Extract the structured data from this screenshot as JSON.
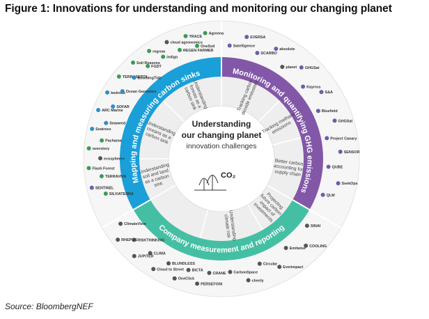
{
  "figure_title": "Figure 1: Innovations for understanding and monitoring our changing planet",
  "source": "Source: BloombergNEF",
  "center": {
    "line1": "Understanding",
    "line2": "our changing planet",
    "line3": "innovation challenges",
    "co2_label": "CO₂"
  },
  "colors": {
    "carbon_sinks": "#1a9fd8",
    "ghg_emissions": "#8257a8",
    "company_reporting": "#45bfa3",
    "inner_ring": "#eeeeee",
    "outer_ring": "#f6f6f6"
  },
  "categories": {
    "carbon_sinks": "Mapping and measuring carbon sinks",
    "ghg_emissions": "Monitoring and quantifying GHG emissions",
    "company_reporting": "Company measurement and reporting"
  },
  "challenges": [
    {
      "lines": [
        "Understanding",
        "forests as a",
        "carbon sink"
      ]
    },
    {
      "lines": [
        "Understanding",
        "oceans as a",
        "carbon sink"
      ]
    },
    {
      "lines": [
        "Understanding",
        "soil and land",
        "as a carbon",
        "sink"
      ]
    },
    {
      "lines": [
        "Tracking carbon",
        "dioxide emissions"
      ]
    },
    {
      "lines": [
        "Tracking methane",
        "emissions"
      ]
    },
    {
      "lines": [
        "Better carbon",
        "accounting for",
        "supply chain"
      ]
    },
    {
      "lines": [
        "Understanding",
        "climate risk"
      ]
    },
    {
      "lines": [
        "Projecting",
        "future carbon",
        "impact of",
        "investments"
      ]
    }
  ],
  "logos": [
    {
      "text": "SILVIATERRA",
      "icon": "leaf-icon"
    },
    {
      "text": "SENTINEL",
      "icon": "satellite-icon"
    },
    {
      "text": "TERRAVIVA",
      "icon": "leaf-icon"
    },
    {
      "text": "Flash Forest",
      "icon": "tree-icon"
    },
    {
      "text": "ecosphere+",
      "icon": "globe-icon"
    },
    {
      "text": "overstory",
      "icon": "tree-icon"
    },
    {
      "text": "Pachama",
      "icon": "leaf-icon"
    },
    {
      "text": "Seatrees",
      "icon": "wave-icon"
    },
    {
      "text": "Seaweed",
      "icon": "wave-icon"
    },
    {
      "text": "ARC Marine",
      "icon": "wave-icon"
    },
    {
      "text": "SOFAR",
      "icon": "wave-icon"
    },
    {
      "text": "bedrock",
      "icon": "wave-icon"
    },
    {
      "text": "Ocean Genomics",
      "icon": "wave-icon"
    },
    {
      "text": "TERRASEPTA",
      "icon": "leaf-icon"
    },
    {
      "text": "BoomingTide",
      "icon": "wave-icon"
    },
    {
      "text": "Soil Reasons",
      "icon": "soil-icon"
    },
    {
      "text": "FGDT",
      "icon": "soil-icon"
    },
    {
      "text": "regrow",
      "icon": "soil-icon"
    },
    {
      "text": "indigo",
      "icon": "soil-icon"
    },
    {
      "text": "cloud agronomics",
      "icon": "cloud-icon"
    },
    {
      "text": "REGEN FARMER",
      "icon": "soil-icon"
    },
    {
      "text": "TRACE",
      "icon": "soil-icon"
    },
    {
      "text": "OneSoil",
      "icon": "soil-icon"
    },
    {
      "text": "Agreena",
      "icon": "soil-icon"
    },
    {
      "text": "CRANE",
      "icon": "chart-icon"
    },
    {
      "text": "PERSEFONI",
      "icon": "chart-icon"
    },
    {
      "text": "BlCTA",
      "icon": "chart-icon"
    },
    {
      "text": "OneClick",
      "icon": "chart-icon"
    },
    {
      "text": "BLUNDLESS",
      "icon": "chart-icon"
    },
    {
      "text": "Cloud to Street",
      "icon": "cloud-icon"
    },
    {
      "text": "CLIMA",
      "icon": "chart-icon"
    },
    {
      "text": "JUPITER",
      "icon": "globe-icon"
    },
    {
      "text": "RISKTHINKING",
      "icon": "chart-icon"
    },
    {
      "text": "RHEPOS",
      "icon": "chart-icon"
    },
    {
      "text": "ClimateView",
      "icon": "chart-icon"
    },
    {
      "text": "Satelligence",
      "icon": "satellite-icon"
    },
    {
      "text": "EVERSA",
      "icon": "satellite-icon"
    },
    {
      "text": "SCARBO",
      "icon": "satellite-icon"
    },
    {
      "text": "absolute",
      "icon": "satellite-icon"
    },
    {
      "text": "planet",
      "icon": "globe-icon"
    },
    {
      "text": "GHGSat",
      "icon": "satellite-icon"
    },
    {
      "text": "Kayrros",
      "icon": "satellite-icon"
    },
    {
      "text": "S&A",
      "icon": "satellite-icon"
    },
    {
      "text": "Bluefield",
      "icon": "satellite-icon"
    },
    {
      "text": "GHGSat",
      "icon": "satellite-icon"
    },
    {
      "text": "Project Canary",
      "icon": "satellite-icon"
    },
    {
      "text": "SENSOR",
      "icon": "satellite-icon"
    },
    {
      "text": "QUBE",
      "icon": "satellite-icon"
    },
    {
      "text": "SeekOps",
      "icon": "satellite-icon"
    },
    {
      "text": "QLM",
      "icon": "satellite-icon"
    },
    {
      "text": "SINAI",
      "icon": "chart-icon"
    },
    {
      "text": "COOLING",
      "icon": "chart-icon"
    },
    {
      "text": "Emitwise",
      "icon": "chart-icon"
    },
    {
      "text": "Everimpact",
      "icon": "chart-icon"
    },
    {
      "text": "Circular",
      "icon": "chart-icon"
    },
    {
      "text": "clverly",
      "icon": "chart-icon"
    },
    {
      "text": "CarbonSpace",
      "icon": "chart-icon"
    }
  ]
}
